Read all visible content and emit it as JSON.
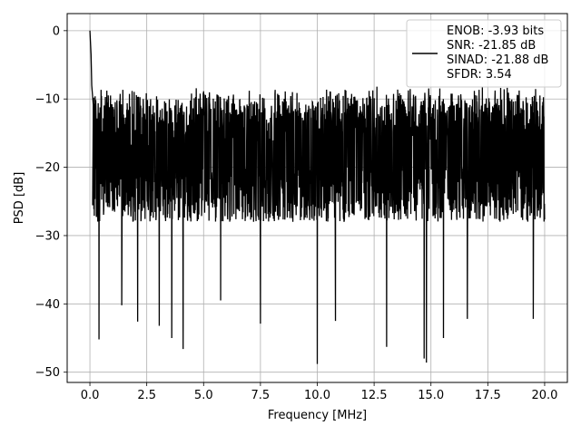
{
  "chart_data": {
    "type": "line",
    "title": "",
    "xlabel": "Frequency [MHz]",
    "ylabel": "PSD [dB]",
    "xlim": [
      -1.0,
      21.0
    ],
    "ylim": [
      -51.5,
      2.5
    ],
    "xticks": [
      0.0,
      2.5,
      5.0,
      7.5,
      10.0,
      12.5,
      15.0,
      17.5,
      20.0
    ],
    "xtick_labels": [
      "0.0",
      "2.5",
      "5.0",
      "7.5",
      "10.0",
      "12.5",
      "15.0",
      "17.5",
      "20.0"
    ],
    "yticks": [
      0,
      -10,
      -20,
      -30,
      -40,
      -50
    ],
    "ytick_labels": [
      "0",
      "−10",
      "−20",
      "−30",
      "−40",
      "−50"
    ],
    "grid": true,
    "legend_position": "top-right",
    "series": [
      {
        "name": "ENOB: -3.93 bits\nSNR: -21.85 dB\nSINAD: -21.88 dB\nSFDR: 3.54",
        "name_lines": [
          "ENOB: -3.93 bits",
          "SNR: -21.85 dB",
          "SINAD: -21.88 dB",
          "SFDR: 3.54"
        ],
        "color": "#000000",
        "noise_floor_range_db": [
          -28,
          -10
        ],
        "notable_points": {
          "x": [
            0.0,
            0.05,
            0.08,
            0.15,
            0.4,
            1.4,
            2.1,
            3.05,
            3.6,
            4.1,
            5.75,
            7.5,
            10.0,
            10.8,
            13.05,
            14.7,
            14.8,
            15.55,
            16.6,
            19.5
          ],
          "y": [
            0.0,
            -3.5,
            -8.0,
            -11.0,
            -45.2,
            -40.2,
            -42.6,
            -43.2,
            -45.0,
            -46.6,
            -39.5,
            -42.9,
            -48.8,
            -42.5,
            -46.3,
            -48.0,
            -48.6,
            -45.0,
            -42.2,
            -42.2
          ]
        }
      }
    ]
  }
}
